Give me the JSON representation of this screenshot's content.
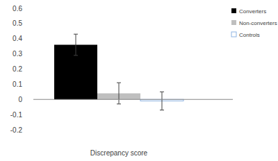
{
  "chart_data": {
    "type": "bar",
    "categories": [
      "Discrepancy score"
    ],
    "series": [
      {
        "name": "Converters",
        "color": "#000000",
        "values": [
          0.36
        ],
        "errors": [
          0.07
        ]
      },
      {
        "name": "Non-converters",
        "color": "#bfbfbf",
        "values": [
          0.04
        ],
        "errors": [
          0.07
        ]
      },
      {
        "name": "Controls",
        "color": "#ffffff",
        "values": [
          -0.01
        ],
        "errors": [
          0.06
        ]
      }
    ],
    "ylim": [
      -0.2,
      0.6
    ],
    "yticks": [
      -0.2,
      -0.1,
      0,
      0.1,
      0.2,
      0.3,
      0.4,
      0.5,
      0.6
    ],
    "grid": false,
    "legend": "right"
  }
}
